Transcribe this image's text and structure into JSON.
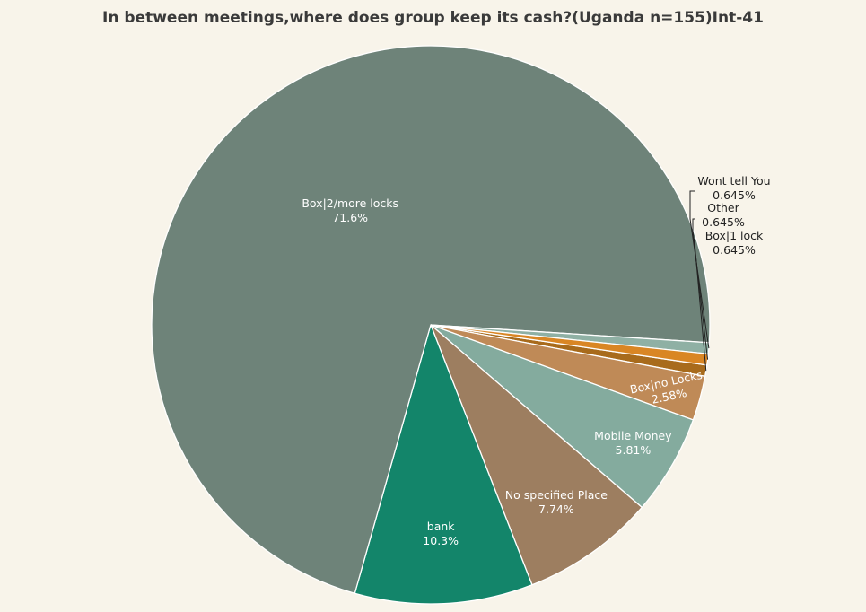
{
  "chart_data": {
    "type": "pie",
    "title": "In between meetings,where does group keep its cash?(Uganda n=155)Int-41",
    "direction": "clockwise",
    "start": "Box|1 lock at right, just below 3 o'clock",
    "slices": [
      {
        "label": "Box|1 lock",
        "percent_text": "0.645%",
        "value": 0.645,
        "color": "#a86b1c"
      },
      {
        "label": "Box|no Locks",
        "percent_text": "2.58%",
        "value": 2.58,
        "color": "#bf8a57"
      },
      {
        "label": "Mobile Money",
        "percent_text": "5.81%",
        "value": 5.81,
        "color": "#84ab9e"
      },
      {
        "label": "No specified Place",
        "percent_text": "7.74%",
        "value": 7.74,
        "color": "#9d7e60"
      },
      {
        "label": "bank",
        "percent_text": "10.3%",
        "value": 10.3,
        "color": "#13856a"
      },
      {
        "label": "Box|2/more locks",
        "percent_text": "71.6%",
        "value": 71.6,
        "color": "#6e8379"
      },
      {
        "label": "Wont tell You",
        "percent_text": "0.645%",
        "value": 0.645,
        "color": "#8fb0a4"
      },
      {
        "label": "Other",
        "percent_text": "0.645%",
        "value": 0.645,
        "color": "#d98624"
      }
    ]
  }
}
